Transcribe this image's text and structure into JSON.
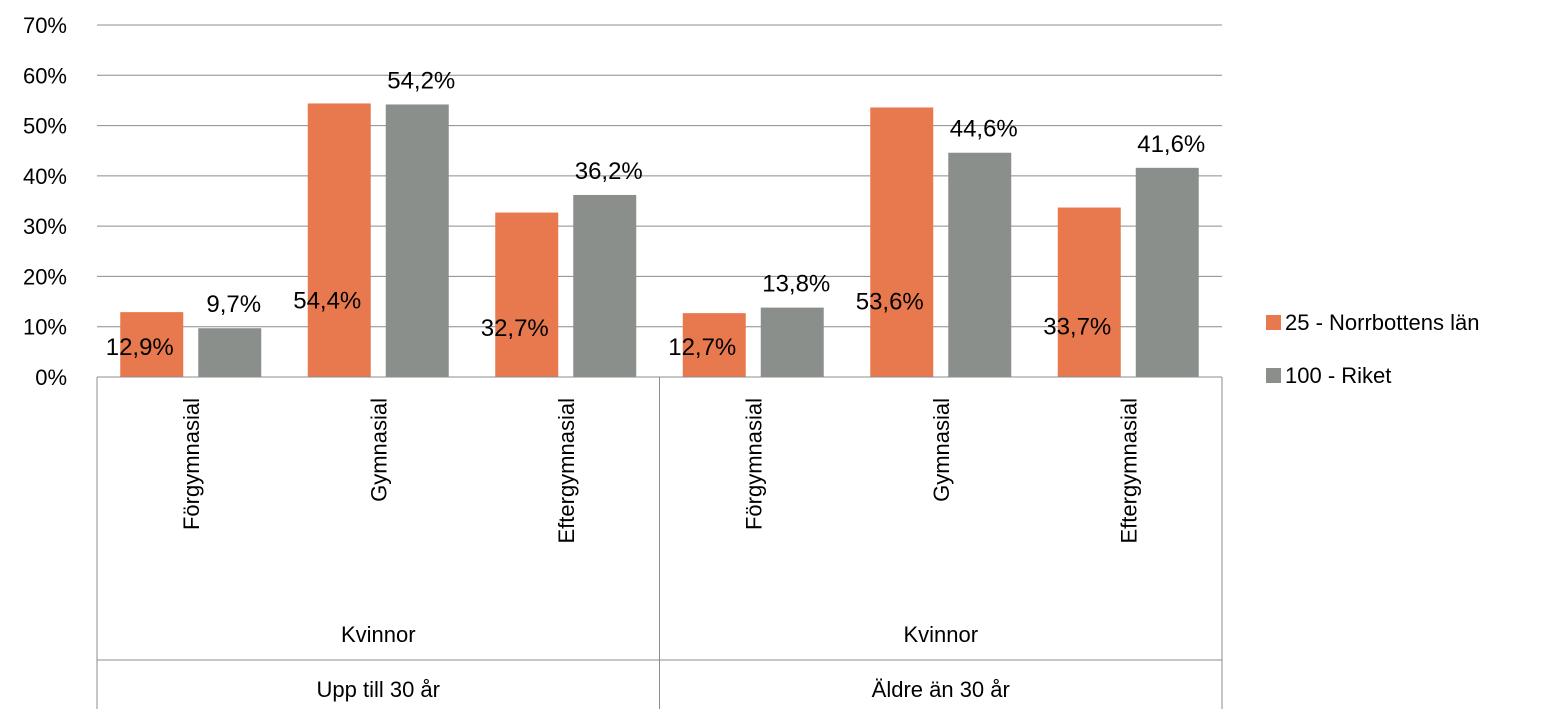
{
  "chart_data": {
    "type": "bar",
    "ylim": [
      0,
      70
    ],
    "y_ticks": [
      "0%",
      "10%",
      "20%",
      "30%",
      "40%",
      "50%",
      "60%",
      "70%"
    ],
    "grid": true,
    "legend_position": "right",
    "categories": [
      "Förgymnasial",
      "Gymnasial",
      "Eftergymnasial",
      "Förgymnasial",
      "Gymnasial",
      "Eftergymnasial"
    ],
    "groups": [
      {
        "gender": "Kvinnor",
        "age": "Upp till 30 år",
        "categories": [
          "Förgymnasial",
          "Gymnasial",
          "Eftergymnasial"
        ]
      },
      {
        "gender": "Kvinnor",
        "age": "Äldre än 30 år",
        "categories": [
          "Förgymnasial",
          "Gymnasial",
          "Eftergymnasial"
        ]
      }
    ],
    "series": [
      {
        "name": "25 - Norrbottens län",
        "color": "#E8784D",
        "values": [
          12.9,
          54.4,
          32.7,
          12.7,
          53.6,
          33.7
        ],
        "labels": [
          "12,9%",
          "54,4%",
          "32,7%",
          "12,7%",
          "53,6%",
          "33,7%"
        ]
      },
      {
        "name": "100 - Riket",
        "color": "#8B8F8C",
        "values": [
          9.7,
          54.2,
          36.2,
          13.8,
          44.6,
          41.6
        ],
        "labels": [
          "9,7%",
          "54,2%",
          "36,2%",
          "13,8%",
          "44,6%",
          "41,6%"
        ]
      }
    ]
  }
}
